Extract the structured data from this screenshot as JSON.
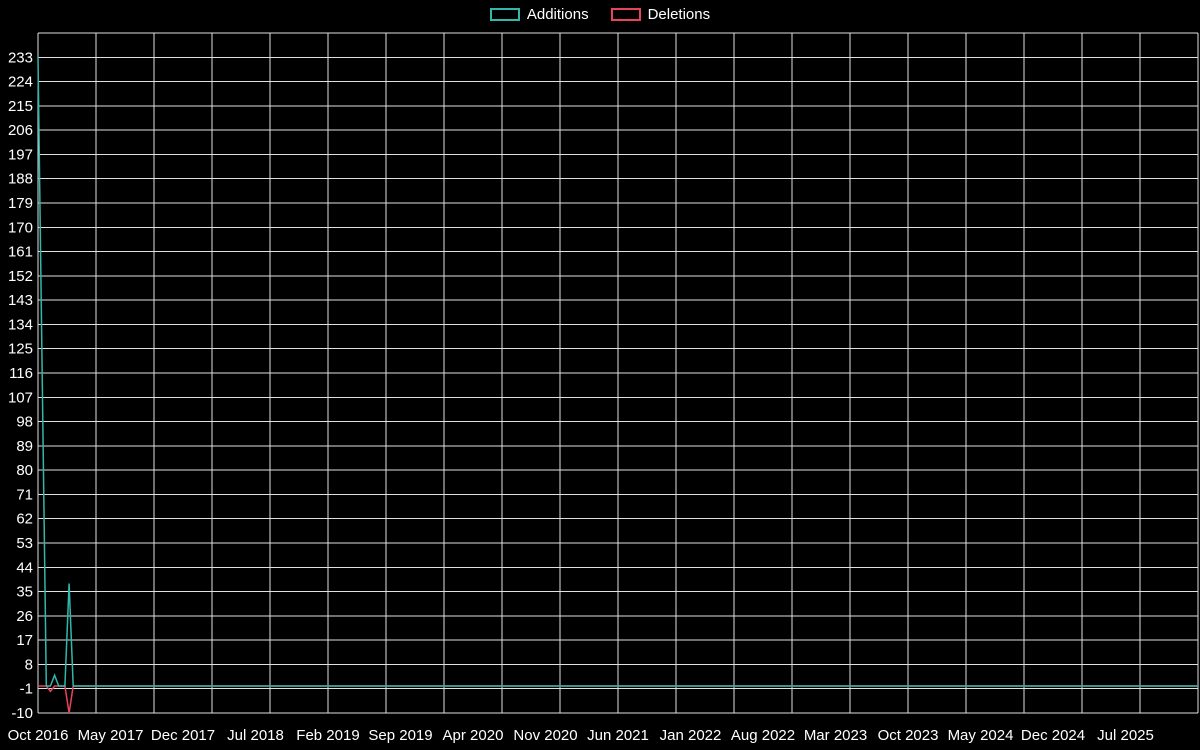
{
  "legend": {
    "items": [
      {
        "label": "Additions",
        "color": "#2fb8ab"
      },
      {
        "label": "Deletions",
        "color": "#e8435a"
      }
    ]
  },
  "chart_data": {
    "type": "line",
    "title": "",
    "xlabel": "",
    "ylabel": "",
    "background_color": "#000000",
    "grid_color": "#e0e0e0",
    "text_color": "#ffffff",
    "grid": true,
    "legend_position": "top-center",
    "x_tick_labels": [
      "Oct 2016",
      "May 2017",
      "Dec 2017",
      "Jul 2018",
      "Feb 2019",
      "Sep 2019",
      "Apr 2020",
      "Nov 2020",
      "Jun 2021",
      "Jan 2022",
      "Aug 2022",
      "Mar 2023",
      "Oct 2023",
      "May 2024",
      "Dec 2024",
      "Jul 2025"
    ],
    "x_tick_interval_months": 7,
    "x_total_months": 112,
    "y_tick_labels": [
      233,
      224,
      215,
      206,
      197,
      188,
      179,
      170,
      161,
      152,
      143,
      134,
      125,
      116,
      107,
      98,
      89,
      80,
      71,
      62,
      53,
      44,
      35,
      26,
      17,
      8,
      -1,
      -10
    ],
    "y_min": -10,
    "y_max_label": 233,
    "y_plot_max": 242,
    "y_tick_step": 9,
    "series": [
      {
        "name": "Deletions",
        "color": "#e8435a",
        "baseline": 0,
        "spikes": [
          {
            "month": 1.2,
            "value": -2,
            "approx_date": "Nov 2016"
          },
          {
            "month": 3,
            "value": -10,
            "approx_date": "Jan 2017"
          }
        ]
      },
      {
        "name": "Additions",
        "color": "#2fb8ab",
        "baseline": 0,
        "spikes": [
          {
            "month": 0,
            "value": 233,
            "approx_date": "Oct 2016"
          },
          {
            "month": 1.6,
            "value": 4,
            "approx_date": "Dec 2016"
          },
          {
            "month": 3,
            "value": 38,
            "approx_date": "Jan 2017"
          }
        ]
      }
    ]
  }
}
